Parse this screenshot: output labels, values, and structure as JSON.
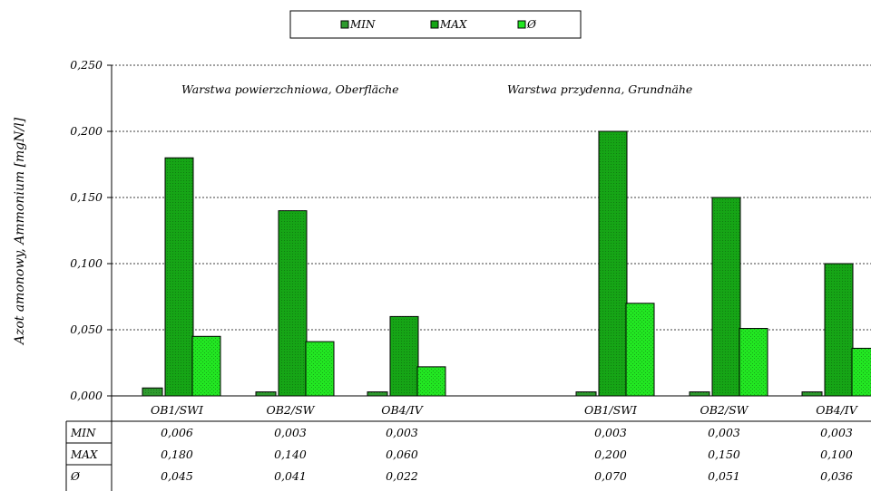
{
  "chart_data": {
    "type": "bar",
    "ylabel": "Azot amonowy, Ammonium  [mgN/l]",
    "ylim": [
      0,
      0.25
    ],
    "yticks": [
      0,
      0.05,
      0.1,
      0.15,
      0.2,
      0.25
    ],
    "ytick_labels": [
      "0,000",
      "0,050",
      "0,100",
      "0,150",
      "0,200",
      "0,250"
    ],
    "grid": true,
    "legend_position": "top-center",
    "groups": [
      {
        "label": "Warstwa powierzchniowa, Oberfläche",
        "categories": [
          "OB1/SWI",
          "OB2/SW",
          "OB4/IV"
        ]
      },
      {
        "label": "Warstwa przydenna, Grundnähe",
        "categories": [
          "OB1/SWI",
          "OB2/SW",
          "OB4/IV"
        ]
      }
    ],
    "categories": [
      "OB1/SWI",
      "OB2/SW",
      "OB4/IV",
      "OB1/SWI",
      "OB2/SW",
      "OB4/IV"
    ],
    "series": [
      {
        "name": "MIN",
        "color": "#2e9a2e",
        "values": [
          0.006,
          0.003,
          0.003,
          0.003,
          0.003,
          0.003
        ],
        "labels": [
          "0,006",
          "0,003",
          "0,003",
          "0,003",
          "0,003",
          "0,003"
        ]
      },
      {
        "name": "MAX",
        "color": "#16a516",
        "values": [
          0.18,
          0.14,
          0.06,
          0.2,
          0.15,
          0.1
        ],
        "labels": [
          "0,180",
          "0,140",
          "0,060",
          "0,200",
          "0,150",
          "0,100"
        ]
      },
      {
        "name": "Ø",
        "color": "#22e622",
        "values": [
          0.045,
          0.041,
          0.022,
          0.07,
          0.051,
          0.036
        ],
        "labels": [
          "0,045",
          "0,041",
          "0,022",
          "0,070",
          "0,051",
          "0,036"
        ]
      }
    ]
  }
}
